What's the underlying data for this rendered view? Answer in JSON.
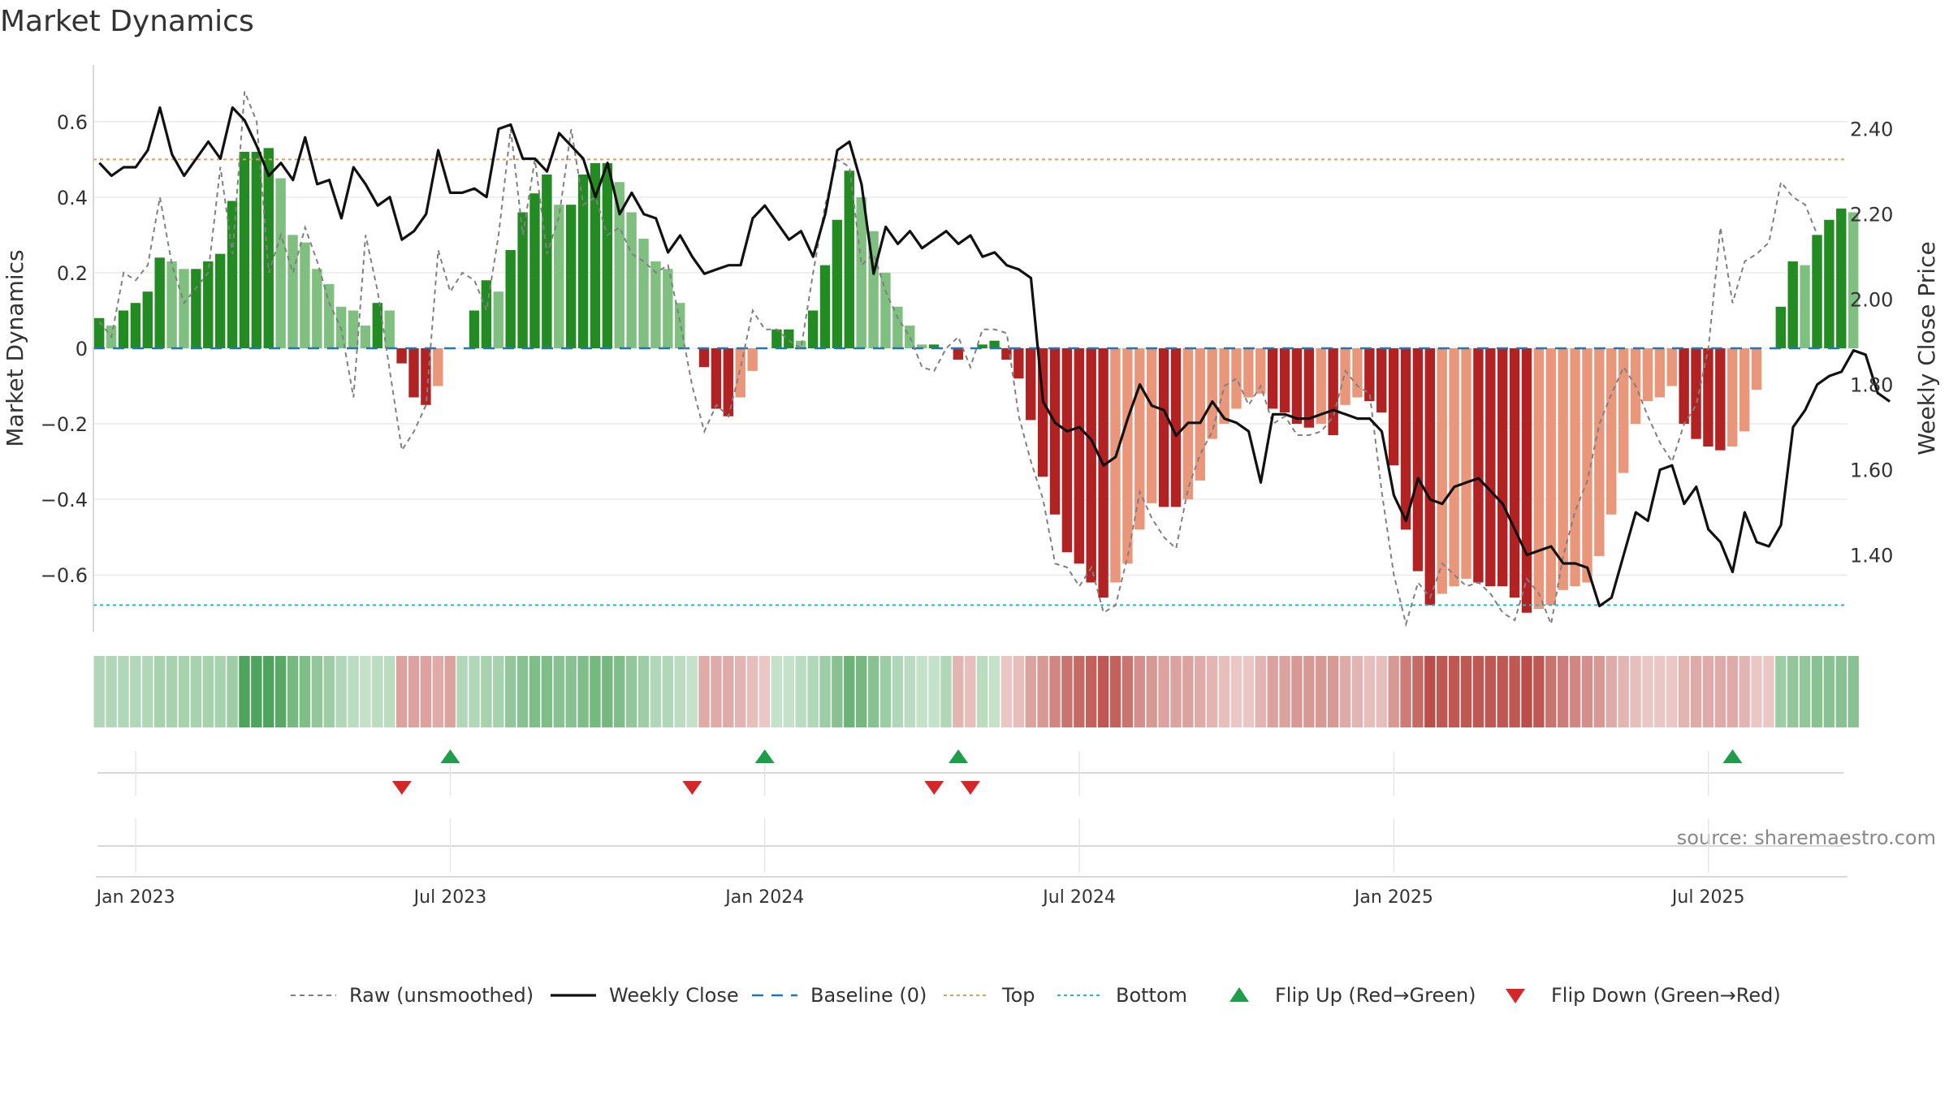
{
  "title": "Market Dynamics",
  "source": "source: sharemaestro.com",
  "colors": {
    "up_strong": "#228b22",
    "up_weak": "#7fbf7f",
    "down_strong": "#b22222",
    "down_weak": "#e9967a",
    "raw": "#808080",
    "close": "#111111",
    "baseline": "#1f77b4",
    "top": "#e39b5a",
    "bottom": "#17becf",
    "flip_up": "#1f9e4a",
    "flip_down": "#d62728"
  },
  "chart_data": {
    "type": "bar",
    "title": "Market Dynamics",
    "ylabel": "Market Dynamics",
    "y2label": "Weekly Close Price",
    "ylim": [
      -0.75,
      0.75
    ],
    "y2lim": [
      1.22,
      2.55
    ],
    "y_ticks": [
      {
        "v": 0.6,
        "label": "0.6"
      },
      {
        "v": 0.4,
        "label": "0.4"
      },
      {
        "v": 0.2,
        "label": "0.2"
      },
      {
        "v": 0,
        "label": "0"
      },
      {
        "v": -0.2,
        "label": "−0.2"
      },
      {
        "v": -0.4,
        "label": "−0.4"
      },
      {
        "v": -0.6,
        "label": "−0.6"
      }
    ],
    "y2_ticks": [
      {
        "v": 2.4,
        "label": "2.40"
      },
      {
        "v": 2.2,
        "label": "2.20"
      },
      {
        "v": 2.0,
        "label": "2.00"
      },
      {
        "v": 1.8,
        "label": "1.80"
      },
      {
        "v": 1.6,
        "label": "1.60"
      },
      {
        "v": 1.4,
        "label": "1.40"
      }
    ],
    "x_ticks": [
      {
        "week": 3,
        "label": "Jan 2023"
      },
      {
        "week": 29,
        "label": "Jul 2023"
      },
      {
        "week": 55,
        "label": "Jan 2024"
      },
      {
        "week": 81,
        "label": "Jul 2024"
      },
      {
        "week": 107,
        "label": "Jan 2025"
      },
      {
        "week": 133,
        "label": "Jul 2025"
      }
    ],
    "top_level": 0.5,
    "bottom_level": -0.68,
    "grid": true,
    "legend_position": "bottom",
    "weeks": 145,
    "series": [
      {
        "name": "Market Dynamics",
        "values": [
          0.08,
          0.06,
          0.1,
          0.12,
          0.15,
          0.24,
          0.23,
          0.21,
          0.21,
          0.23,
          0.25,
          0.39,
          0.52,
          0.52,
          0.53,
          0.45,
          0.3,
          0.28,
          0.21,
          0.17,
          0.11,
          0.1,
          0.06,
          0.12,
          0.1,
          -0.04,
          -0.13,
          -0.15,
          -0.1,
          0,
          0,
          0.1,
          0.18,
          0.15,
          0.26,
          0.36,
          0.41,
          0.46,
          0.38,
          0.38,
          0.46,
          0.49,
          0.49,
          0.44,
          0.36,
          0.29,
          0.23,
          0.21,
          0.12,
          0,
          -0.05,
          -0.16,
          -0.18,
          -0.13,
          -0.06,
          0,
          0.05,
          0.05,
          0.02,
          0.1,
          0.22,
          0.34,
          0.47,
          0.4,
          0.31,
          0.2,
          0.11,
          0.06,
          0.01,
          0.01,
          0,
          -0.03,
          0,
          0.01,
          0.02,
          -0.03,
          -0.08,
          -0.19,
          -0.34,
          -0.44,
          -0.54,
          -0.57,
          -0.62,
          -0.66,
          -0.62,
          -0.57,
          -0.48,
          -0.41,
          -0.42,
          -0.42,
          -0.4,
          -0.35,
          -0.24,
          -0.2,
          -0.16,
          -0.13,
          -0.12,
          -0.16,
          -0.17,
          -0.2,
          -0.21,
          -0.2,
          -0.23,
          -0.15,
          -0.13,
          -0.14,
          -0.17,
          -0.31,
          -0.48,
          -0.59,
          -0.68,
          -0.65,
          -0.63,
          -0.61,
          -0.62,
          -0.63,
          -0.63,
          -0.66,
          -0.7,
          -0.69,
          -0.68,
          -0.64,
          -0.63,
          -0.62,
          -0.55,
          -0.44,
          -0.33,
          -0.2,
          -0.14,
          -0.13,
          -0.1,
          -0.2,
          -0.24,
          -0.26,
          -0.27,
          -0.26,
          -0.22,
          -0.11,
          0,
          0.11,
          0.23,
          0.22,
          0.3,
          0.34,
          0.37,
          0.36
        ]
      },
      {
        "name": "Raw (unsmoothed)",
        "values": [
          0.07,
          0.03,
          0.2,
          0.18,
          0.22,
          0.4,
          0.22,
          0.12,
          0.16,
          0.2,
          0.48,
          0.25,
          0.68,
          0.6,
          0.2,
          0.3,
          0.2,
          0.32,
          0.23,
          0.12,
          0.05,
          -0.13,
          0.3,
          0.15,
          -0.06,
          -0.27,
          -0.22,
          -0.15,
          0.26,
          0.15,
          0.2,
          0.18,
          0.1,
          0.3,
          0.58,
          0.3,
          0.5,
          0.25,
          0.35,
          0.58,
          0.38,
          0.4,
          0.3,
          0.32,
          0.25,
          0.23,
          0.2,
          0.22,
          0.07,
          -0.1,
          -0.22,
          -0.15,
          -0.18,
          -0.05,
          0.1,
          0.05,
          0.05,
          0.02,
          0,
          0.2,
          0.38,
          0.5,
          0.48,
          0.22,
          0.25,
          0.15,
          0.08,
          0.03,
          -0.05,
          -0.06,
          0,
          0.03,
          -0.05,
          0.05,
          0.05,
          0.04,
          -0.18,
          -0.3,
          -0.4,
          -0.57,
          -0.58,
          -0.63,
          -0.58,
          -0.7,
          -0.68,
          -0.55,
          -0.38,
          -0.45,
          -0.5,
          -0.53,
          -0.37,
          -0.28,
          -0.22,
          -0.1,
          -0.08,
          -0.15,
          -0.1,
          -0.2,
          -0.18,
          -0.23,
          -0.23,
          -0.22,
          -0.18,
          -0.06,
          -0.1,
          -0.12,
          -0.38,
          -0.6,
          -0.73,
          -0.62,
          -0.66,
          -0.57,
          -0.6,
          -0.63,
          -0.62,
          -0.65,
          -0.7,
          -0.72,
          -0.61,
          -0.65,
          -0.73,
          -0.55,
          -0.43,
          -0.35,
          -0.2,
          -0.12,
          -0.05,
          -0.1,
          -0.18,
          -0.25,
          -0.3,
          -0.2,
          -0.15,
          0,
          0.32,
          0.12,
          0.23,
          0.25,
          0.28,
          0.44,
          0.4,
          0.38,
          0.3
        ]
      },
      {
        "name": "Weekly Close",
        "values": [
          2.32,
          2.29,
          2.31,
          2.31,
          2.35,
          2.45,
          2.34,
          2.29,
          2.33,
          2.37,
          2.33,
          2.45,
          2.42,
          2.36,
          2.29,
          2.32,
          2.28,
          2.38,
          2.27,
          2.28,
          2.19,
          2.31,
          2.27,
          2.22,
          2.24,
          2.14,
          2.16,
          2.2,
          2.35,
          2.25,
          2.25,
          2.26,
          2.24,
          2.4,
          2.41,
          2.33,
          2.33,
          2.3,
          2.39,
          2.36,
          2.33,
          2.24,
          2.32,
          2.2,
          2.25,
          2.2,
          2.19,
          2.11,
          2.15,
          2.1,
          2.06,
          2.07,
          2.08,
          2.08,
          2.19,
          2.22,
          2.18,
          2.14,
          2.16,
          2.1,
          2.2,
          2.35,
          2.37,
          2.27,
          2.06,
          2.17,
          2.13,
          2.16,
          2.12,
          2.14,
          2.16,
          2.13,
          2.15,
          2.1,
          2.11,
          2.08,
          2.07,
          2.05,
          1.76,
          1.71,
          1.69,
          1.7,
          1.67,
          1.61,
          1.63,
          1.72,
          1.8,
          1.75,
          1.74,
          1.68,
          1.71,
          1.71,
          1.76,
          1.72,
          1.71,
          1.69,
          1.57,
          1.73,
          1.73,
          1.72,
          1.72,
          1.73,
          1.74,
          1.73,
          1.72,
          1.72,
          1.69,
          1.54,
          1.48,
          1.58,
          1.53,
          1.52,
          1.56,
          1.57,
          1.58,
          1.55,
          1.52,
          1.46,
          1.4,
          1.41,
          1.42,
          1.38,
          1.38,
          1.37,
          1.28,
          1.3,
          1.4,
          1.5,
          1.48,
          1.6,
          1.61,
          1.52,
          1.56,
          1.46,
          1.43,
          1.36,
          1.5,
          1.43,
          1.42,
          1.47,
          1.7,
          1.74,
          1.8,
          1.82,
          1.83,
          1.88,
          1.87,
          1.78,
          1.76
        ]
      }
    ],
    "intensity": [
      0.4,
      0.4,
      0.4,
      0.4,
      0.4,
      0.45,
      0.45,
      0.45,
      0.45,
      0.45,
      0.45,
      0.5,
      0.9,
      0.9,
      0.9,
      0.85,
      0.7,
      0.65,
      0.55,
      0.5,
      0.4,
      0.35,
      0.3,
      0.35,
      0.35,
      0.5,
      0.5,
      0.5,
      0.45,
      0.5,
      0.4,
      0.4,
      0.45,
      0.45,
      0.55,
      0.6,
      0.65,
      0.65,
      0.6,
      0.6,
      0.65,
      0.7,
      0.7,
      0.65,
      0.55,
      0.5,
      0.4,
      0.4,
      0.35,
      0.3,
      0.45,
      0.45,
      0.45,
      0.4,
      0.35,
      0.3,
      0.3,
      0.3,
      0.35,
      0.4,
      0.5,
      0.6,
      0.75,
      0.7,
      0.6,
      0.5,
      0.4,
      0.35,
      0.3,
      0.3,
      0.4,
      0.4,
      0.35,
      0.35,
      0.3,
      0.3,
      0.35,
      0.5,
      0.55,
      0.65,
      0.75,
      0.8,
      0.85,
      0.9,
      0.85,
      0.75,
      0.6,
      0.55,
      0.5,
      0.5,
      0.5,
      0.45,
      0.4,
      0.35,
      0.3,
      0.3,
      0.4,
      0.5,
      0.5,
      0.55,
      0.55,
      0.55,
      0.55,
      0.45,
      0.4,
      0.35,
      0.35,
      0.55,
      0.7,
      0.8,
      0.95,
      0.9,
      0.9,
      0.9,
      0.9,
      0.9,
      0.9,
      0.9,
      0.95,
      0.9,
      0.75,
      0.7,
      0.65,
      0.6,
      0.55,
      0.45,
      0.4,
      0.35,
      0.3,
      0.3,
      0.3,
      0.4,
      0.45,
      0.45,
      0.45,
      0.45,
      0.4,
      0.3,
      0.3,
      0.5,
      0.55,
      0.55,
      0.6,
      0.6,
      0.6,
      0.6
    ],
    "flips_up": [
      29,
      55,
      71,
      135
    ],
    "flips_down": [
      25,
      49,
      69,
      72
    ],
    "legend": [
      {
        "key": "raw",
        "label": "Raw (unsmoothed)"
      },
      {
        "key": "close",
        "label": "Weekly Close"
      },
      {
        "key": "baseline",
        "label": "Baseline (0)"
      },
      {
        "key": "top",
        "label": "Top"
      },
      {
        "key": "bottom",
        "label": "Bottom"
      },
      {
        "key": "flip_up",
        "label": "Flip Up (Red→Green)"
      },
      {
        "key": "flip_down",
        "label": "Flip Down (Green→Red)"
      }
    ]
  }
}
